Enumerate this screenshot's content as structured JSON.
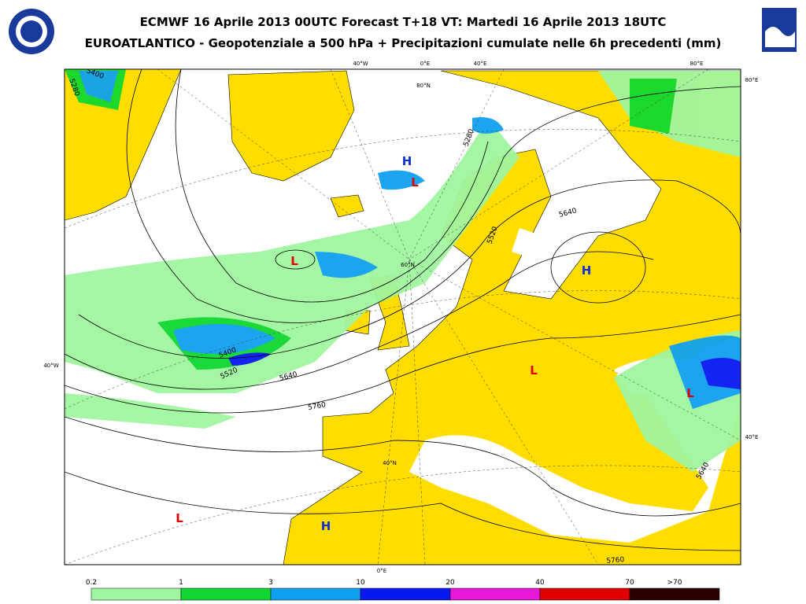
{
  "header": {
    "title": "ECMWF 16 Aprile 2013 00UTC Forecast T+18 VT: Martedi 16 Aprile 2013 18UTC",
    "subtitle": "EUROATLANTICO - Geopotenziale a 500 hPa + Precipitazioni cumulate nelle 6h precedenti (mm)"
  },
  "map": {
    "grid_labels": [
      "40°W",
      "0°E",
      "40°E",
      "80°E",
      "80°E",
      "40°E",
      "40°W",
      "80°N",
      "60°N",
      "40°N",
      "0°E"
    ],
    "contour_labels": [
      "5400",
      "5280",
      "5280",
      "5640",
      "5520",
      "5400",
      "5520",
      "5640",
      "5760",
      "5640",
      "5760"
    ],
    "centers": [
      "H",
      "L",
      "L",
      "H",
      "L",
      "L",
      "L",
      "H"
    ]
  },
  "colorbar": {
    "labels": [
      "0.2",
      "1",
      "3",
      "10",
      "20",
      "40",
      "70",
      ">70"
    ],
    "colors": [
      "#a0f5a0",
      "#10d830",
      "#10a0f0",
      "#0818f0",
      "#e818d8",
      "#e00000",
      "#2a0000"
    ]
  }
}
